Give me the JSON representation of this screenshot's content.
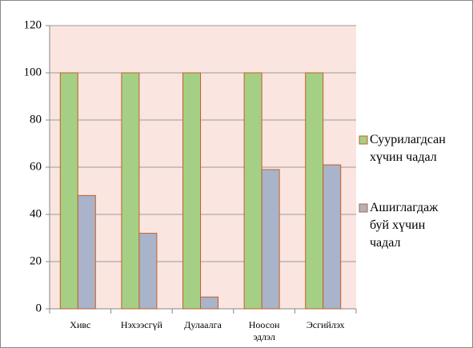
{
  "chart_data": {
    "type": "bar",
    "categories": [
      "Хивс",
      "Нэхээсгүй",
      "Дулаалга",
      "Ноосон эдлэл",
      "Эсгийлэх"
    ],
    "series": [
      {
        "name": "Суурилагдсан хүчин чадал",
        "color": "#a6cf86",
        "values": [
          100,
          100,
          100,
          100,
          100
        ]
      },
      {
        "name": "Ашиглагдаж буй хүчин чадал",
        "color": "#a9b3ca",
        "values": [
          48,
          32,
          5,
          59,
          61
        ]
      }
    ],
    "ylim": [
      0,
      120
    ],
    "yticks": [
      0,
      20,
      40,
      60,
      80,
      100,
      120
    ],
    "grid": true,
    "legend": "right"
  }
}
